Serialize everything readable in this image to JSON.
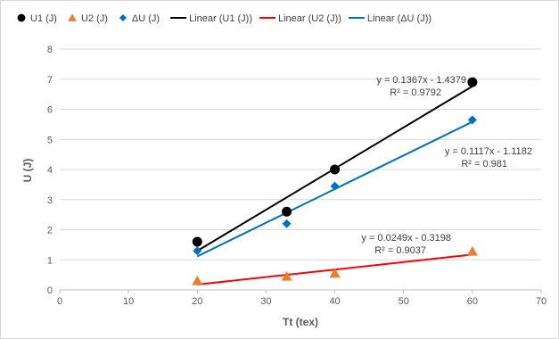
{
  "chart_data": {
    "type": "scatter",
    "xlabel": "Tt (tex)",
    "ylabel": "U (J)",
    "xlim": [
      0,
      70
    ],
    "ylim": [
      0,
      8
    ],
    "x_ticks": [
      "0",
      "10",
      "20",
      "30",
      "40",
      "50",
      "60",
      "70"
    ],
    "y_ticks": [
      "0",
      "1",
      "2",
      "3",
      "4",
      "5",
      "6",
      "7",
      "8"
    ],
    "grid": "horizontal",
    "legend_position": "top",
    "series": [
      {
        "name": "U1 (J)",
        "marker": "circle",
        "color": "#000000",
        "points": [
          [
            20,
            1.6
          ],
          [
            33,
            2.6
          ],
          [
            40,
            4.0
          ],
          [
            60,
            6.9
          ]
        ]
      },
      {
        "name": "U2 (J)",
        "marker": "triangle",
        "color": "#ED7D31",
        "points": [
          [
            20,
            0.3
          ],
          [
            33,
            0.45
          ],
          [
            40,
            0.55
          ],
          [
            60,
            1.28
          ]
        ]
      },
      {
        "name": "ΔU (J)",
        "marker": "diamond",
        "color": "#0070C0",
        "points": [
          [
            20,
            1.3
          ],
          [
            33,
            2.2
          ],
          [
            40,
            3.45
          ],
          [
            60,
            5.65
          ]
        ]
      }
    ],
    "trendlines": [
      {
        "name": "Linear (U1 (J))",
        "color": "#000000",
        "slope": 0.1367,
        "intercept": -1.4379,
        "x_range": [
          20,
          60
        ],
        "equation": "y = 0.1367x - 1.4379",
        "r2": "R² = 0.9792"
      },
      {
        "name": "Linear (U2 (J))",
        "color": "#FF0000",
        "slope": 0.0249,
        "intercept": -0.3198,
        "x_range": [
          20,
          60
        ],
        "equation": "y = 0.0249x - 0.3198",
        "r2": "R² = 0.9037"
      },
      {
        "name": "Linear (ΔU (J))",
        "color": "#0070C0",
        "slope": 0.1117,
        "intercept": -1.1182,
        "x_range": [
          20,
          60
        ],
        "equation": "y = 0.1117x - 1.1182",
        "r2": "R² = 0.981"
      }
    ]
  }
}
